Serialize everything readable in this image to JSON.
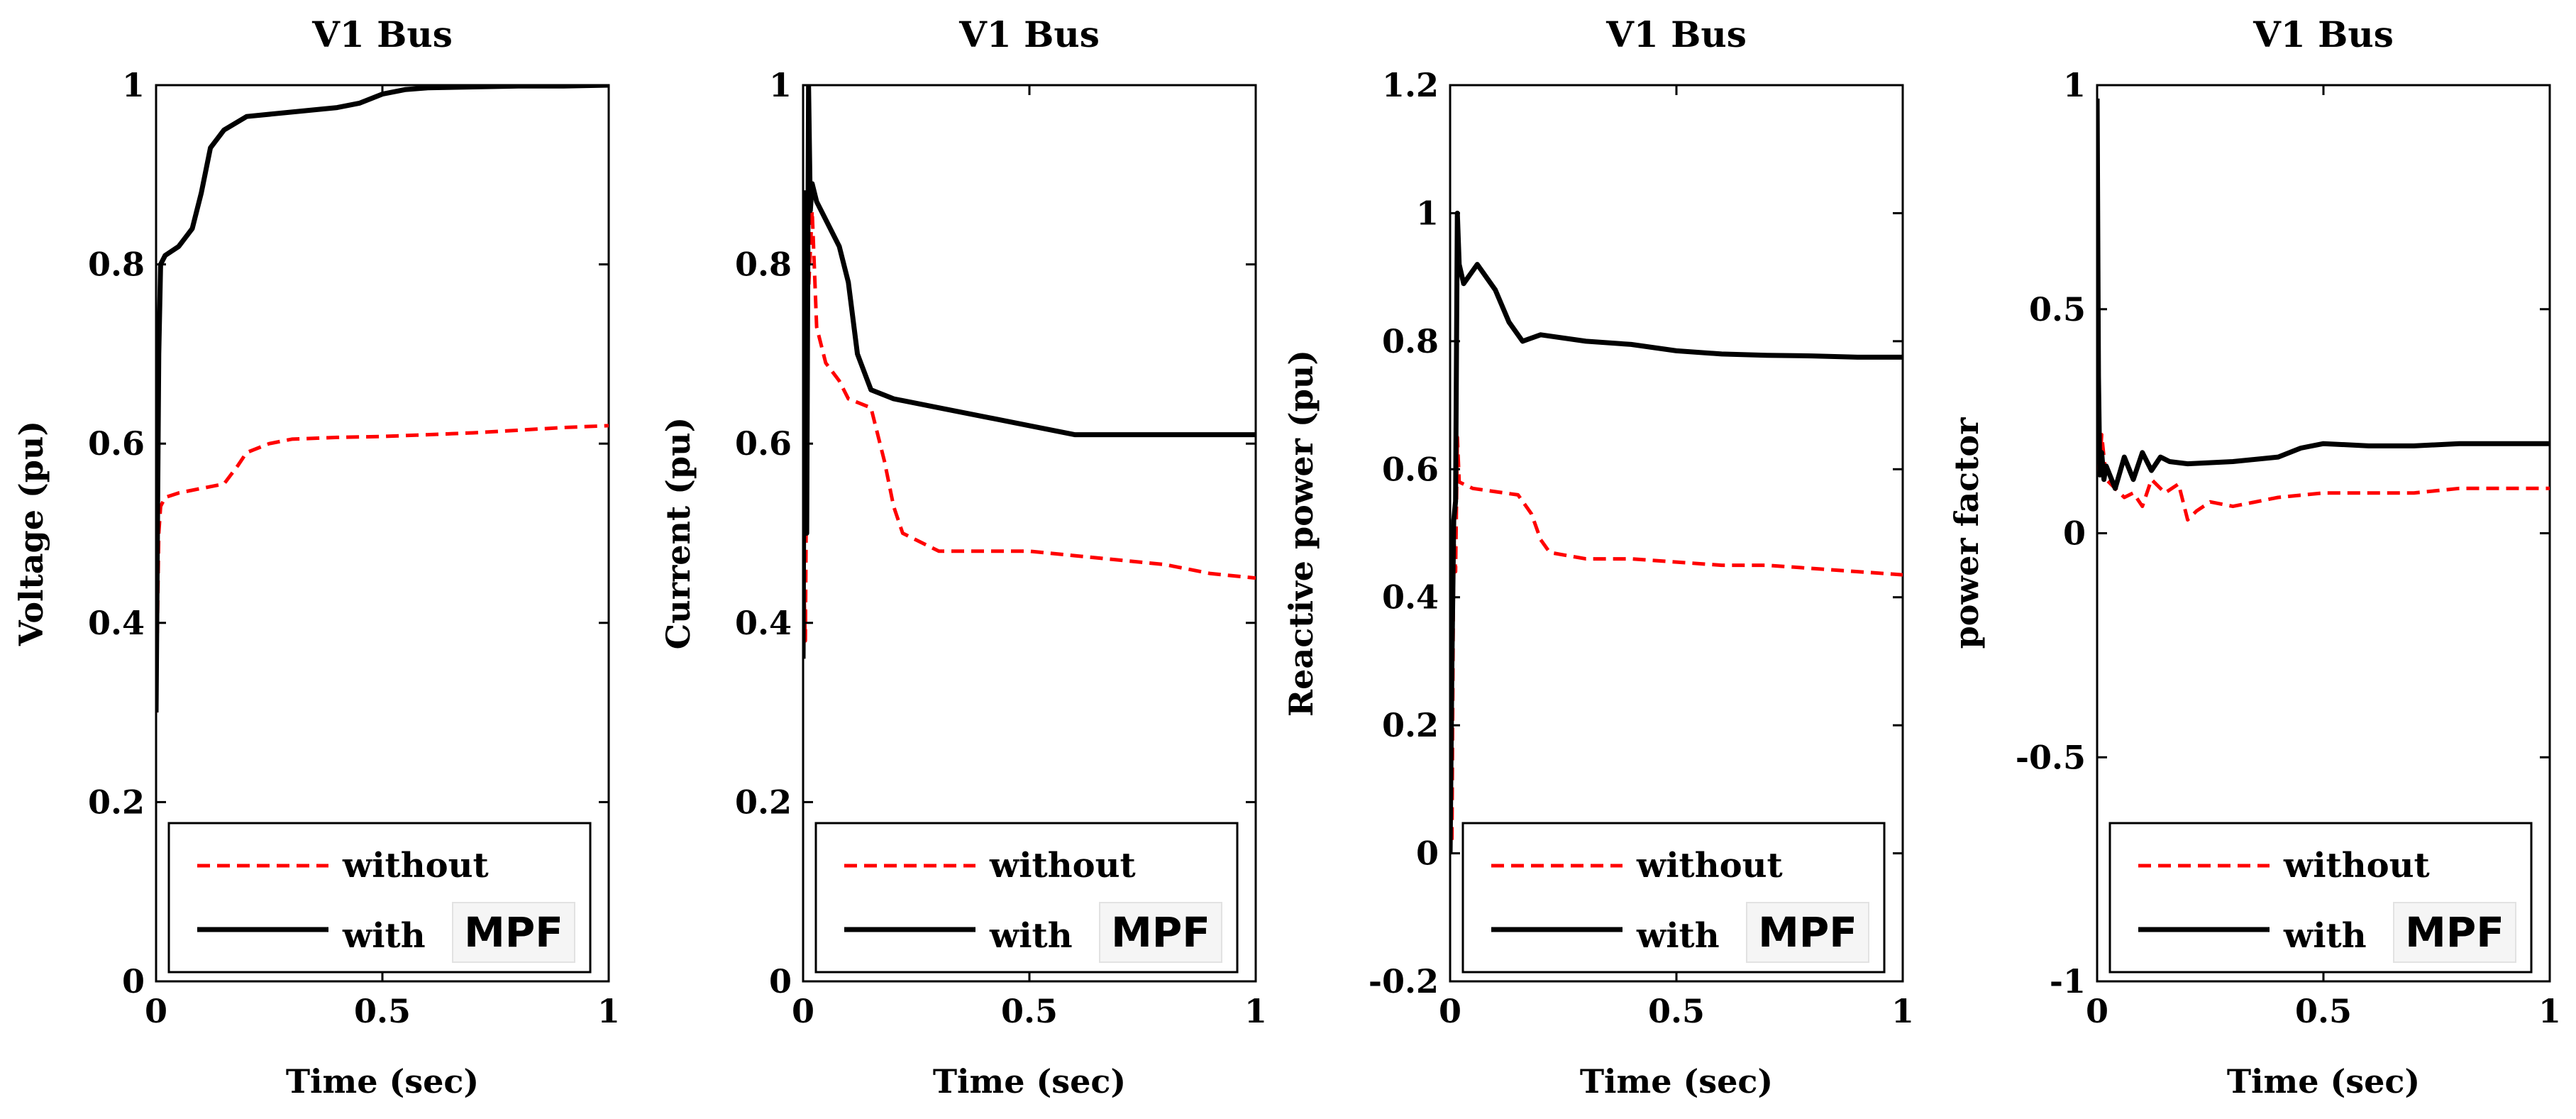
{
  "chart_data": [
    {
      "type": "line",
      "title": "V1 Bus",
      "xlabel": "Time (sec)",
      "ylabel": "Voltage (pu)",
      "xlim": [
        0,
        1
      ],
      "ylim": [
        0,
        1
      ],
      "xticks": [
        0,
        0.5,
        1
      ],
      "xtick_labels": [
        "0",
        "0.5",
        "1"
      ],
      "yticks": [
        0,
        0.2,
        0.4,
        0.6,
        0.8,
        1
      ],
      "ytick_labels": [
        "0",
        "0.2",
        "0.4",
        "0.6",
        "0.8",
        "1"
      ],
      "grid": false,
      "legend_position": "bottom",
      "legend": [
        "without",
        "with",
        "MPF"
      ],
      "series": [
        {
          "name": "without",
          "color": "#ff0000",
          "style": "dashed",
          "x": [
            0,
            0.003,
            0.006,
            0.01,
            0.02,
            0.05,
            0.1,
            0.15,
            0.18,
            0.2,
            0.25,
            0.3,
            0.4,
            0.5,
            0.6,
            0.7,
            0.8,
            0.9,
            1.0
          ],
          "y": [
            0.3,
            0.4,
            0.5,
            0.53,
            0.54,
            0.545,
            0.55,
            0.555,
            0.575,
            0.59,
            0.6,
            0.605,
            0.607,
            0.608,
            0.61,
            0.612,
            0.615,
            0.618,
            0.62
          ]
        },
        {
          "name": "with",
          "color": "#000000",
          "style": "solid",
          "x": [
            0,
            0.003,
            0.006,
            0.01,
            0.02,
            0.05,
            0.08,
            0.1,
            0.12,
            0.15,
            0.2,
            0.3,
            0.4,
            0.45,
            0.5,
            0.55,
            0.6,
            0.7,
            0.8,
            0.9,
            1.0
          ],
          "y": [
            0.3,
            0.5,
            0.7,
            0.8,
            0.81,
            0.82,
            0.84,
            0.88,
            0.93,
            0.95,
            0.965,
            0.97,
            0.975,
            0.98,
            0.99,
            0.995,
            0.997,
            0.998,
            0.999,
            0.999,
            1.0
          ]
        }
      ]
    },
    {
      "type": "line",
      "title": "V1 Bus",
      "xlabel": "Time (sec)",
      "ylabel": "Current (pu)",
      "xlim": [
        0,
        1
      ],
      "ylim": [
        0,
        1
      ],
      "xticks": [
        0,
        0.5,
        1
      ],
      "xtick_labels": [
        "0",
        "0.5",
        "1"
      ],
      "yticks": [
        0,
        0.2,
        0.4,
        0.6,
        0.8,
        1
      ],
      "ytick_labels": [
        "0",
        "0.2",
        "0.4",
        "0.6",
        "0.8",
        "1"
      ],
      "grid": false,
      "legend_position": "bottom",
      "legend": [
        "without",
        "with",
        "MPF"
      ],
      "series": [
        {
          "name": "without",
          "color": "#ff0000",
          "style": "dashed",
          "x": [
            0,
            0.005,
            0.01,
            0.02,
            0.03,
            0.05,
            0.08,
            0.1,
            0.15,
            0.18,
            0.2,
            0.22,
            0.3,
            0.4,
            0.5,
            0.6,
            0.7,
            0.8,
            0.9,
            1.0
          ],
          "y": [
            0.47,
            0.38,
            0.75,
            0.86,
            0.73,
            0.69,
            0.67,
            0.65,
            0.64,
            0.58,
            0.53,
            0.5,
            0.48,
            0.48,
            0.48,
            0.475,
            0.47,
            0.465,
            0.455,
            0.45
          ]
        },
        {
          "name": "with",
          "color": "#000000",
          "style": "solid",
          "x": [
            0,
            0.004,
            0.008,
            0.012,
            0.016,
            0.02,
            0.03,
            0.05,
            0.08,
            0.1,
            0.12,
            0.15,
            0.2,
            0.3,
            0.4,
            0.5,
            0.6,
            0.7,
            0.8,
            0.9,
            1.0
          ],
          "y": [
            0.36,
            0.88,
            0.5,
            1.0,
            0.86,
            0.89,
            0.87,
            0.85,
            0.82,
            0.78,
            0.7,
            0.66,
            0.65,
            0.64,
            0.63,
            0.62,
            0.61,
            0.61,
            0.61,
            0.61,
            0.61
          ]
        }
      ]
    },
    {
      "type": "line",
      "title": "V1 Bus",
      "xlabel": "Time (sec)",
      "ylabel": "Reactive power (pu)",
      "xlim": [
        0,
        1
      ],
      "ylim": [
        -0.2,
        1.2
      ],
      "xticks": [
        0,
        0.5,
        1
      ],
      "xtick_labels": [
        "0",
        "0.5",
        "1"
      ],
      "yticks": [
        -0.2,
        0,
        0.2,
        0.4,
        0.6,
        0.8,
        1,
        1.2
      ],
      "ytick_labels": [
        "-0.2",
        "0",
        "0.2",
        "0.4",
        "0.6",
        "0.8",
        "1",
        "1.2"
      ],
      "grid": false,
      "legend_position": "bottom",
      "legend": [
        "without",
        "with",
        "MPF"
      ],
      "series": [
        {
          "name": "without",
          "color": "#ff0000",
          "style": "dashed",
          "x": [
            0,
            0.004,
            0.008,
            0.012,
            0.016,
            0.02,
            0.05,
            0.1,
            0.15,
            0.18,
            0.2,
            0.22,
            0.3,
            0.4,
            0.5,
            0.6,
            0.7,
            0.8,
            0.9,
            1.0
          ],
          "y": [
            0.05,
            0.02,
            0.5,
            0.44,
            0.65,
            0.58,
            0.57,
            0.565,
            0.56,
            0.53,
            0.49,
            0.47,
            0.46,
            0.46,
            0.455,
            0.45,
            0.45,
            0.445,
            0.44,
            0.435
          ]
        },
        {
          "name": "with",
          "color": "#000000",
          "style": "solid",
          "x": [
            0,
            0.004,
            0.008,
            0.012,
            0.016,
            0.02,
            0.03,
            0.06,
            0.1,
            0.13,
            0.16,
            0.2,
            0.3,
            0.4,
            0.5,
            0.6,
            0.7,
            0.8,
            0.9,
            1.0
          ],
          "y": [
            0.0,
            0.3,
            0.52,
            0.55,
            1.0,
            0.92,
            0.89,
            0.92,
            0.88,
            0.83,
            0.8,
            0.81,
            0.8,
            0.795,
            0.785,
            0.78,
            0.778,
            0.777,
            0.775,
            0.775
          ]
        }
      ]
    },
    {
      "type": "line",
      "title": "V1 Bus",
      "xlabel": "Time (sec)",
      "ylabel": "power factor",
      "xlim": [
        0,
        1
      ],
      "ylim": [
        -1,
        1
      ],
      "xticks": [
        0,
        0.5,
        1
      ],
      "xtick_labels": [
        "0",
        "0.5",
        "1"
      ],
      "yticks": [
        -1,
        -0.5,
        0,
        0.5,
        1
      ],
      "ytick_labels": [
        "-1",
        "-0.5",
        "0",
        "0.5",
        "1"
      ],
      "grid": false,
      "legend_position": "bottom",
      "legend": [
        "without",
        "with",
        "MPF"
      ],
      "series": [
        {
          "name": "without",
          "color": "#ff0000",
          "style": "dashed",
          "x": [
            0,
            0.005,
            0.01,
            0.02,
            0.04,
            0.06,
            0.08,
            0.1,
            0.12,
            0.15,
            0.18,
            0.2,
            0.22,
            0.25,
            0.3,
            0.4,
            0.5,
            0.6,
            0.7,
            0.8,
            0.9,
            1.0
          ],
          "y": [
            0.2,
            0.13,
            0.22,
            0.12,
            0.1,
            0.08,
            0.09,
            0.06,
            0.12,
            0.09,
            0.11,
            0.03,
            0.05,
            0.07,
            0.06,
            0.08,
            0.09,
            0.09,
            0.09,
            0.1,
            0.1,
            0.1
          ]
        },
        {
          "name": "with",
          "color": "#000000",
          "style": "solid",
          "x": [
            0,
            0.003,
            0.006,
            0.01,
            0.015,
            0.02,
            0.04,
            0.06,
            0.08,
            0.1,
            0.12,
            0.14,
            0.16,
            0.2,
            0.3,
            0.4,
            0.45,
            0.5,
            0.6,
            0.7,
            0.8,
            0.9,
            1.0
          ],
          "y": [
            0.97,
            0.35,
            0.13,
            0.18,
            0.12,
            0.15,
            0.1,
            0.17,
            0.12,
            0.18,
            0.14,
            0.17,
            0.16,
            0.155,
            0.16,
            0.17,
            0.19,
            0.2,
            0.195,
            0.195,
            0.2,
            0.2,
            0.2
          ]
        }
      ]
    }
  ]
}
